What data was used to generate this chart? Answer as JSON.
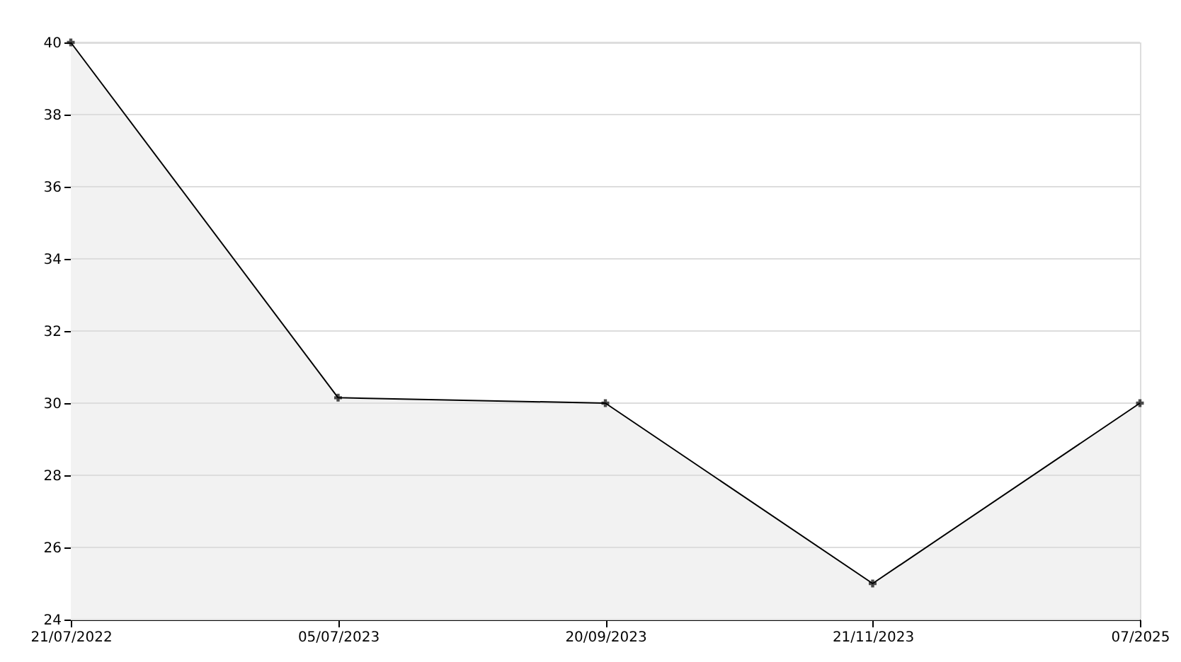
{
  "chart_data": {
    "type": "area",
    "categories": [
      "21/07/2022",
      "05/07/2023",
      "20/09/2023",
      "21/11/2023",
      "07/2025"
    ],
    "series": [
      {
        "color": "#000000",
        "values": [
          40,
          30.15,
          30,
          25,
          30
        ]
      }
    ],
    "ylim": [
      24,
      40
    ],
    "yticks": [
      24,
      26,
      28,
      30,
      32,
      34,
      36,
      38,
      40
    ],
    "grid": "y",
    "marker": "cross"
  }
}
